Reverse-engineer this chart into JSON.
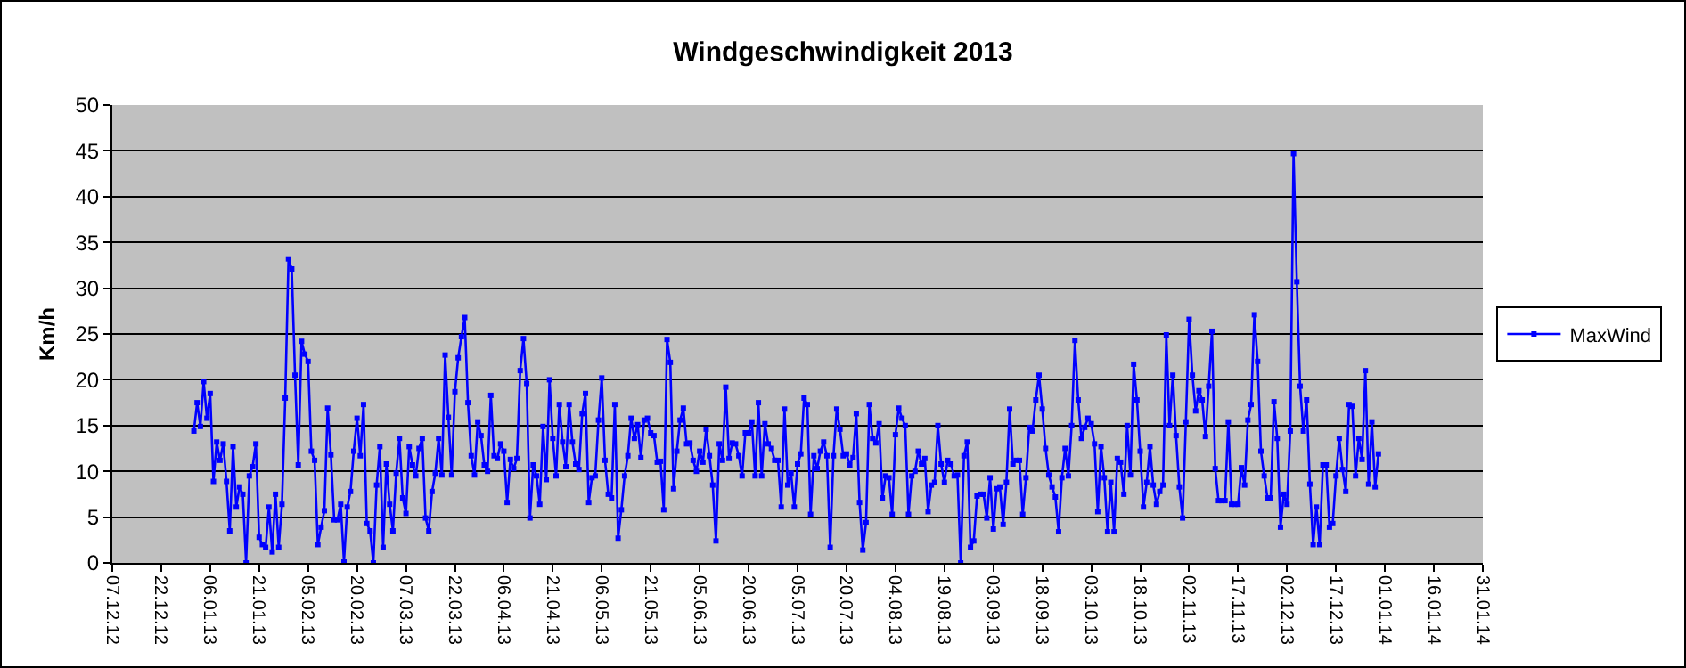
{
  "chart_data": {
    "type": "line",
    "title": "Windgeschwindigkeit 2013",
    "ylabel": "Km/h",
    "xlim": [
      "2012-12-07",
      "2014-01-31"
    ],
    "xticks": [
      {
        "value": "2012-12-07",
        "label": "07.12.12"
      },
      {
        "value": "2012-12-22",
        "label": "22.12.12"
      },
      {
        "value": "2013-01-06",
        "label": "06.01.13"
      },
      {
        "value": "2013-01-21",
        "label": "21.01.13"
      },
      {
        "value": "2013-02-05",
        "label": "05.02.13"
      },
      {
        "value": "2013-02-20",
        "label": "20.02.13"
      },
      {
        "value": "2013-03-07",
        "label": "07.03.13"
      },
      {
        "value": "2013-03-22",
        "label": "22.03.13"
      },
      {
        "value": "2013-04-06",
        "label": "06.04.13"
      },
      {
        "value": "2013-04-21",
        "label": "21.04.13"
      },
      {
        "value": "2013-05-06",
        "label": "06.05.13"
      },
      {
        "value": "2013-05-21",
        "label": "21.05.13"
      },
      {
        "value": "2013-06-05",
        "label": "05.06.13"
      },
      {
        "value": "2013-06-20",
        "label": "20.06.13"
      },
      {
        "value": "2013-07-05",
        "label": "05.07.13"
      },
      {
        "value": "2013-07-20",
        "label": "20.07.13"
      },
      {
        "value": "2013-08-04",
        "label": "04.08.13"
      },
      {
        "value": "2013-08-19",
        "label": "19.08.13"
      },
      {
        "value": "2013-09-03",
        "label": "03.09.13"
      },
      {
        "value": "2013-09-18",
        "label": "18.09.13"
      },
      {
        "value": "2013-10-03",
        "label": "03.10.13"
      },
      {
        "value": "2013-10-18",
        "label": "18.10.13"
      },
      {
        "value": "2013-11-02",
        "label": "02.11.13"
      },
      {
        "value": "2013-11-17",
        "label": "17.11.13"
      },
      {
        "value": "2013-12-02",
        "label": "02.12.13"
      },
      {
        "value": "2013-12-17",
        "label": "17.12.13"
      },
      {
        "value": "2014-01-01",
        "label": "01.01.14"
      },
      {
        "value": "2014-01-16",
        "label": "16.01.14"
      },
      {
        "value": "2014-01-31",
        "label": "31.01.14"
      }
    ],
    "ylim": [
      0,
      50
    ],
    "yticks": [
      0,
      5,
      10,
      15,
      20,
      25,
      30,
      35,
      40,
      45,
      50
    ],
    "grid": "y",
    "legend": "right",
    "marker": "square",
    "line_style": "solid",
    "x": [
      "2013-01-01",
      "2013-01-02",
      "2013-01-03",
      "2013-01-04",
      "2013-01-05",
      "2013-01-06",
      "2013-01-07",
      "2013-01-08",
      "2013-01-09",
      "2013-01-10",
      "2013-01-11",
      "2013-01-12",
      "2013-01-13",
      "2013-01-14",
      "2013-01-15",
      "2013-01-16",
      "2013-01-17",
      "2013-01-18",
      "2013-01-19",
      "2013-01-20",
      "2013-01-21",
      "2013-01-22",
      "2013-01-23",
      "2013-01-24",
      "2013-01-25",
      "2013-01-26",
      "2013-01-27",
      "2013-01-28",
      "2013-01-29",
      "2013-01-30",
      "2013-01-31",
      "2013-02-01",
      "2013-02-02",
      "2013-02-03",
      "2013-02-04",
      "2013-02-05",
      "2013-02-06",
      "2013-02-07",
      "2013-02-08",
      "2013-02-09",
      "2013-02-10",
      "2013-02-11",
      "2013-02-12",
      "2013-02-13",
      "2013-02-14",
      "2013-02-15",
      "2013-02-16",
      "2013-02-17",
      "2013-02-18",
      "2013-02-19",
      "2013-02-20",
      "2013-02-21",
      "2013-02-22",
      "2013-02-23",
      "2013-02-24",
      "2013-02-25",
      "2013-02-26",
      "2013-02-27",
      "2013-02-28",
      "2013-03-01",
      "2013-03-02",
      "2013-03-03",
      "2013-03-04",
      "2013-03-05",
      "2013-03-06",
      "2013-03-07",
      "2013-03-08",
      "2013-03-09",
      "2013-03-10",
      "2013-03-11",
      "2013-03-12",
      "2013-03-13",
      "2013-03-14",
      "2013-03-15",
      "2013-03-16",
      "2013-03-17",
      "2013-03-18",
      "2013-03-19",
      "2013-03-20",
      "2013-03-21",
      "2013-03-22",
      "2013-03-23",
      "2013-03-24",
      "2013-03-25",
      "2013-03-26",
      "2013-03-27",
      "2013-03-28",
      "2013-03-29",
      "2013-03-30",
      "2013-03-31",
      "2013-04-01",
      "2013-04-02",
      "2013-04-03",
      "2013-04-04",
      "2013-04-05",
      "2013-04-06",
      "2013-04-07",
      "2013-04-08",
      "2013-04-09",
      "2013-04-10",
      "2013-04-11",
      "2013-04-12",
      "2013-04-13",
      "2013-04-14",
      "2013-04-15",
      "2013-04-16",
      "2013-04-17",
      "2013-04-18",
      "2013-04-19",
      "2013-04-20",
      "2013-04-21",
      "2013-04-22",
      "2013-04-23",
      "2013-04-24",
      "2013-04-25",
      "2013-04-26",
      "2013-04-27",
      "2013-04-28",
      "2013-04-29",
      "2013-04-30",
      "2013-05-01",
      "2013-05-02",
      "2013-05-03",
      "2013-05-04",
      "2013-05-05",
      "2013-05-06",
      "2013-05-07",
      "2013-05-08",
      "2013-05-09",
      "2013-05-10",
      "2013-05-11",
      "2013-05-12",
      "2013-05-13",
      "2013-05-14",
      "2013-05-15",
      "2013-05-16",
      "2013-05-17",
      "2013-05-18",
      "2013-05-19",
      "2013-05-20",
      "2013-05-21",
      "2013-05-22",
      "2013-05-23",
      "2013-05-24",
      "2013-05-25",
      "2013-05-26",
      "2013-05-27",
      "2013-05-28",
      "2013-05-29",
      "2013-05-30",
      "2013-05-31",
      "2013-06-01",
      "2013-06-02",
      "2013-06-03",
      "2013-06-04",
      "2013-06-05",
      "2013-06-06",
      "2013-06-07",
      "2013-06-08",
      "2013-06-09",
      "2013-06-10",
      "2013-06-11",
      "2013-06-12",
      "2013-06-13",
      "2013-06-14",
      "2013-06-15",
      "2013-06-16",
      "2013-06-17",
      "2013-06-18",
      "2013-06-19",
      "2013-06-20",
      "2013-06-21",
      "2013-06-22",
      "2013-06-23",
      "2013-06-24",
      "2013-06-25",
      "2013-06-26",
      "2013-06-27",
      "2013-06-28",
      "2013-06-29",
      "2013-06-30",
      "2013-07-01",
      "2013-07-02",
      "2013-07-03",
      "2013-07-04",
      "2013-07-05",
      "2013-07-06",
      "2013-07-07",
      "2013-07-08",
      "2013-07-09",
      "2013-07-10",
      "2013-07-11",
      "2013-07-12",
      "2013-07-13",
      "2013-07-14",
      "2013-07-15",
      "2013-07-16",
      "2013-07-17",
      "2013-07-18",
      "2013-07-19",
      "2013-07-20",
      "2013-07-21",
      "2013-07-22",
      "2013-07-23",
      "2013-07-24",
      "2013-07-25",
      "2013-07-26",
      "2013-07-27",
      "2013-07-28",
      "2013-07-29",
      "2013-07-30",
      "2013-07-31",
      "2013-08-01",
      "2013-08-02",
      "2013-08-03",
      "2013-08-04",
      "2013-08-05",
      "2013-08-06",
      "2013-08-07",
      "2013-08-08",
      "2013-08-09",
      "2013-08-10",
      "2013-08-11",
      "2013-08-12",
      "2013-08-13",
      "2013-08-14",
      "2013-08-15",
      "2013-08-16",
      "2013-08-17",
      "2013-08-18",
      "2013-08-19",
      "2013-08-20",
      "2013-08-21",
      "2013-08-22",
      "2013-08-23",
      "2013-08-24",
      "2013-08-25",
      "2013-08-26",
      "2013-08-27",
      "2013-08-28",
      "2013-08-29",
      "2013-08-30",
      "2013-08-31",
      "2013-09-01",
      "2013-09-02",
      "2013-09-03",
      "2013-09-04",
      "2013-09-05",
      "2013-09-06",
      "2013-09-07",
      "2013-09-08",
      "2013-09-09",
      "2013-09-10",
      "2013-09-11",
      "2013-09-12",
      "2013-09-13",
      "2013-09-14",
      "2013-09-15",
      "2013-09-16",
      "2013-09-17",
      "2013-09-18",
      "2013-09-19",
      "2013-09-20",
      "2013-09-21",
      "2013-09-22",
      "2013-09-23",
      "2013-09-24",
      "2013-09-25",
      "2013-09-26",
      "2013-09-27",
      "2013-09-28",
      "2013-09-29",
      "2013-09-30",
      "2013-10-01",
      "2013-10-02",
      "2013-10-03",
      "2013-10-04",
      "2013-10-05",
      "2013-10-06",
      "2013-10-07",
      "2013-10-08",
      "2013-10-09",
      "2013-10-10",
      "2013-10-11",
      "2013-10-12",
      "2013-10-13",
      "2013-10-14",
      "2013-10-15",
      "2013-10-16",
      "2013-10-17",
      "2013-10-18",
      "2013-10-19",
      "2013-10-20",
      "2013-10-21",
      "2013-10-22",
      "2013-10-23",
      "2013-10-24",
      "2013-10-25",
      "2013-10-26",
      "2013-10-27",
      "2013-10-28",
      "2013-10-29",
      "2013-10-30",
      "2013-10-31",
      "2013-11-01",
      "2013-11-02",
      "2013-11-03",
      "2013-11-04",
      "2013-11-05",
      "2013-11-06",
      "2013-11-07",
      "2013-11-08",
      "2013-11-09",
      "2013-11-10",
      "2013-11-11",
      "2013-11-12",
      "2013-11-13",
      "2013-11-14",
      "2013-11-15",
      "2013-11-16",
      "2013-11-17",
      "2013-11-18",
      "2013-11-19",
      "2013-11-20",
      "2013-11-21",
      "2013-11-22",
      "2013-11-23",
      "2013-11-24",
      "2013-11-25",
      "2013-11-26",
      "2013-11-27",
      "2013-11-28",
      "2013-11-29",
      "2013-11-30",
      "2013-12-01",
      "2013-12-02",
      "2013-12-03",
      "2013-12-04",
      "2013-12-05",
      "2013-12-06",
      "2013-12-07",
      "2013-12-08",
      "2013-12-09",
      "2013-12-10",
      "2013-12-11",
      "2013-12-12",
      "2013-12-13",
      "2013-12-14",
      "2013-12-15",
      "2013-12-16",
      "2013-12-17",
      "2013-12-18",
      "2013-12-19",
      "2013-12-20",
      "2013-12-21",
      "2013-12-22",
      "2013-12-23",
      "2013-12-24",
      "2013-12-25",
      "2013-12-26",
      "2013-12-27",
      "2013-12-28",
      "2013-12-29",
      "2013-12-30"
    ],
    "series": [
      {
        "name": "MaxWind",
        "color": "#0000ff",
        "values": [
          14.4,
          17.5,
          14.9,
          19.8,
          15.8,
          18.5,
          8.9,
          13.2,
          11.2,
          13.0,
          8.9,
          3.5,
          12.7,
          6.1,
          8.3,
          7.5,
          0,
          9.5,
          10.5,
          13.0,
          2.8,
          2.0,
          1.7,
          6.1,
          1.2,
          7.5,
          1.7,
          6.4,
          18.0,
          33.2,
          32.1,
          20.5,
          10.7,
          24.2,
          22.8,
          22.0,
          12.2,
          11.2,
          2.0,
          3.9,
          5.7,
          16.9,
          11.8,
          4.7,
          4.7,
          6.4,
          0.1,
          6.1,
          7.8,
          12.2,
          15.8,
          11.7,
          17.3,
          4.3,
          3.5,
          0,
          8.5,
          12.7,
          1.7,
          10.8,
          6.4,
          3.5,
          9.8,
          13.6,
          7.1,
          5.4,
          12.7,
          10.7,
          9.5,
          12.5,
          13.6,
          4.9,
          3.5,
          7.8,
          9.8,
          13.6,
          9.6,
          22.7,
          15.9,
          9.6,
          18.7,
          22.4,
          24.7,
          26.8,
          17.5,
          11.7,
          9.6,
          15.4,
          13.9,
          10.7,
          10.0,
          18.3,
          11.7,
          11.4,
          13.0,
          12.2,
          6.6,
          11.3,
          10.3,
          11.4,
          21.0,
          24.5,
          19.6,
          4.9,
          10.7,
          9.5,
          6.4,
          14.9,
          9.1,
          20.0,
          13.6,
          9.5,
          17.3,
          13.2,
          10.5,
          17.3,
          13.2,
          10.8,
          10.2,
          16.3,
          18.5,
          6.6,
          9.3,
          9.5,
          15.6,
          20.2,
          11.2,
          7.5,
          7.1,
          17.3,
          2.7,
          5.8,
          9.5,
          11.7,
          15.8,
          13.6,
          15.1,
          11.5,
          15.6,
          15.8,
          14.2,
          13.9,
          11.0,
          11.1,
          5.8,
          24.4,
          21.9,
          8.1,
          12.2,
          15.6,
          16.9,
          13.0,
          13.1,
          11.2,
          10.0,
          12.2,
          11.0,
          14.6,
          11.7,
          8.5,
          2.4,
          13.0,
          11.2,
          19.2,
          11.4,
          13.1,
          13.0,
          11.7,
          9.5,
          14.2,
          14.2,
          15.4,
          9.5,
          17.5,
          9.5,
          15.2,
          13.0,
          12.5,
          11.2,
          11.2,
          6.1,
          16.8,
          8.5,
          9.8,
          6.1,
          10.8,
          11.9,
          18.0,
          17.3,
          5.3,
          11.7,
          10.3,
          12.2,
          13.2,
          11.7,
          1.7,
          11.7,
          16.8,
          14.6,
          11.7,
          11.9,
          10.7,
          11.5,
          16.3,
          6.6,
          1.4,
          4.4,
          17.3,
          13.6,
          13.1,
          15.2,
          7.1,
          9.5,
          9.3,
          5.3,
          14.0,
          16.9,
          15.8,
          15.0,
          5.3,
          9.5,
          10.0,
          12.2,
          10.8,
          11.4,
          5.6,
          8.5,
          8.8,
          15.0,
          10.8,
          8.8,
          11.2,
          10.8,
          9.5,
          9.6,
          0,
          11.7,
          13.2,
          1.7,
          2.4,
          7.3,
          7.5,
          7.5,
          4.9,
          9.3,
          3.7,
          8.1,
          8.3,
          4.2,
          8.8,
          16.8,
          10.8,
          11.2,
          11.2,
          5.3,
          9.3,
          14.8,
          14.4,
          17.8,
          20.5,
          16.8,
          12.5,
          9.6,
          8.3,
          7.2,
          3.4,
          9.3,
          12.5,
          9.5,
          15.0,
          24.3,
          17.8,
          13.6,
          14.8,
          15.8,
          15.2,
          13.0,
          5.6,
          12.7,
          9.3,
          3.4,
          8.8,
          3.4,
          11.4,
          11.0,
          7.5,
          15.0,
          9.6,
          21.7,
          17.8,
          12.2,
          6.1,
          8.8,
          12.7,
          8.5,
          6.4,
          7.8,
          8.5,
          24.9,
          15.0,
          20.5,
          13.9,
          8.3,
          4.9,
          15.4,
          26.6,
          20.5,
          16.6,
          18.8,
          17.8,
          13.8,
          19.3,
          25.3,
          10.3,
          6.8,
          6.8,
          6.8,
          15.4,
          6.4,
          6.4,
          6.4,
          10.4,
          8.5,
          15.6,
          17.3,
          27.1,
          22.0,
          12.2,
          9.5,
          7.1,
          7.1,
          17.6,
          13.6,
          3.9,
          7.5,
          6.4,
          14.4,
          44.7,
          30.7,
          19.3,
          14.4,
          17.8,
          8.6,
          2.0,
          6.1,
          2.0,
          10.7,
          10.7,
          3.9,
          4.3,
          9.5,
          13.6,
          10.2,
          7.8,
          17.3,
          17.1,
          9.5,
          13.6,
          11.3,
          21.0,
          8.6,
          15.4,
          8.3,
          11.9
        ]
      }
    ]
  }
}
